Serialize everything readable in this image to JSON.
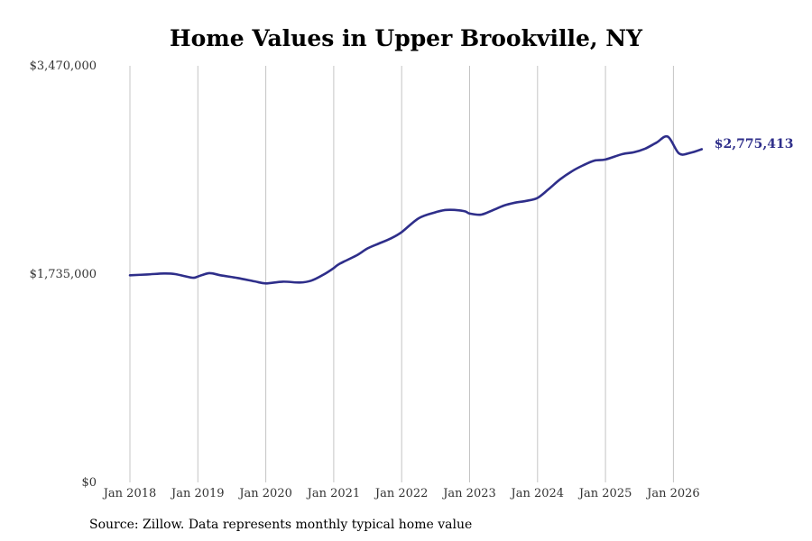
{
  "chart_data": {
    "type": "line",
    "title": "Home Values in Upper Brookville, NY",
    "source": "Source: Zillow. Data represents monthly typical home value",
    "ylim": [
      0,
      3470000
    ],
    "y_ticks": [
      {
        "value": 0,
        "label": "$0"
      },
      {
        "value": 1735000,
        "label": "$1,735,000"
      },
      {
        "value": 3470000,
        "label": "$3,470,000"
      }
    ],
    "x_ticks": [
      {
        "value": 2018.0,
        "label": "Jan 2018"
      },
      {
        "value": 2019.0,
        "label": "Jan 2019"
      },
      {
        "value": 2020.0,
        "label": "Jan 2020"
      },
      {
        "value": 2021.0,
        "label": "Jan 2021"
      },
      {
        "value": 2022.0,
        "label": "Jan 2022"
      },
      {
        "value": 2023.0,
        "label": "Jan 2023"
      },
      {
        "value": 2024.0,
        "label": "Jan 2024"
      },
      {
        "value": 2025.0,
        "label": "Jan 2025"
      },
      {
        "value": 2026.0,
        "label": "Jan 2026"
      }
    ],
    "xlim": [
      2018.0,
      2026.4167
    ],
    "grid": "vertical",
    "line_color": "#2e2e8a",
    "end_label": "$2,775,413",
    "series": [
      {
        "x": [
          2018.0,
          2018.25,
          2018.5,
          2018.667,
          2018.917,
          2019.0,
          2019.167,
          2019.333,
          2019.583,
          2019.833,
          2020.0,
          2020.25,
          2020.5,
          2020.667,
          2020.833,
          2021.0,
          2021.083,
          2021.333,
          2021.5,
          2021.667,
          2021.833,
          2022.0,
          2022.25,
          2022.5,
          2022.667,
          2022.917,
          2023.0,
          2023.167,
          2023.333,
          2023.5,
          2023.667,
          2023.833,
          2024.0,
          2024.167,
          2024.333,
          2024.5,
          2024.667,
          2024.833,
          2025.0,
          2025.25,
          2025.417,
          2025.583,
          2025.75,
          2025.917,
          2026.083,
          2026.25,
          2026.4167
        ],
        "y": [
          1725000,
          1732000,
          1740000,
          1735000,
          1705000,
          1715000,
          1743000,
          1725000,
          1703000,
          1675000,
          1658000,
          1672000,
          1665000,
          1680000,
          1725000,
          1785000,
          1820000,
          1890000,
          1950000,
          1990000,
          2030000,
          2085000,
          2200000,
          2250000,
          2270000,
          2260000,
          2240000,
          2230000,
          2265000,
          2305000,
          2330000,
          2345000,
          2370000,
          2445000,
          2525000,
          2590000,
          2640000,
          2680000,
          2690000,
          2735000,
          2750000,
          2780000,
          2830000,
          2880000,
          2740000,
          2745000,
          2775413
        ]
      }
    ]
  }
}
